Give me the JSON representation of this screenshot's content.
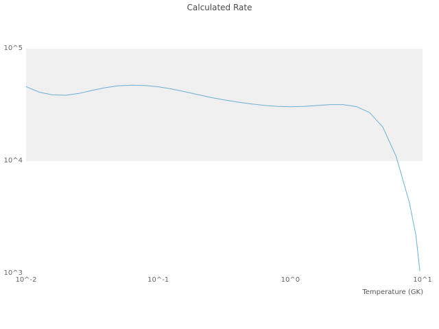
{
  "chart_data": {
    "type": "line",
    "title": "Calculated Rate",
    "xlabel": "Temperature (GK)",
    "ylabel": "",
    "xscale": "log",
    "yscale": "log",
    "xlim": [
      0.01,
      10
    ],
    "ylim": [
      1000,
      100000
    ],
    "grid": false,
    "legend": "none",
    "band_y": [
      10000,
      100000
    ],
    "band_color": "#f0f0f0",
    "line_color": "#6baed6",
    "xticks": [
      {
        "label": "10^-2",
        "value": 0.01
      },
      {
        "label": "10^-1",
        "value": 0.1
      },
      {
        "label": "10^0",
        "value": 1
      },
      {
        "label": "10^1",
        "value": 10
      }
    ],
    "yticks": [
      {
        "label": "10^3",
        "value": 1000
      },
      {
        "label": "10^4",
        "value": 10000
      },
      {
        "label": "10^5",
        "value": 100000
      }
    ],
    "series": [
      {
        "name": "calculated-rate",
        "x": [
          0.01,
          0.0126,
          0.0158,
          0.02,
          0.0251,
          0.0316,
          0.0398,
          0.0501,
          0.0631,
          0.0794,
          0.1,
          0.126,
          0.158,
          0.2,
          0.251,
          0.316,
          0.398,
          0.501,
          0.631,
          0.794,
          1.0,
          1.26,
          1.58,
          2.0,
          2.51,
          3.16,
          3.98,
          5.01,
          6.31,
          7.94,
          8.91,
          9.55
        ],
        "y": [
          46000,
          41000,
          38800,
          38500,
          40000,
          42500,
          45000,
          46800,
          47300,
          47000,
          45800,
          43800,
          41500,
          39000,
          36800,
          35000,
          33500,
          32300,
          31300,
          30700,
          30400,
          30600,
          31200,
          31800,
          31800,
          30500,
          27000,
          20000,
          11000,
          4300,
          2200,
          1050
        ]
      }
    ]
  }
}
